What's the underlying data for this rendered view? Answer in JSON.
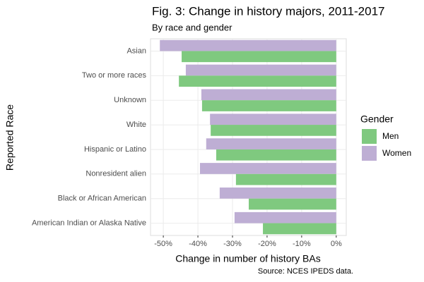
{
  "chart_data": {
    "type": "bar",
    "orientation": "horizontal",
    "title": "Fig. 3: Change in history majors, 2011-2017",
    "subtitle": "By race and gender",
    "xlabel": "Change in number of history BAs",
    "ylabel": "Reported Race",
    "caption": "Source: NCES IPEDS data.",
    "legend_title": "Gender",
    "legend_position": "right",
    "categories": [
      "Asian",
      "Two or more races",
      "Unknown",
      "White",
      "Hispanic or Latino",
      "Nonresident alien",
      "Black or African American",
      "American Indian or Alaska Native"
    ],
    "series": [
      {
        "name": "Men",
        "color": "#7fc97f",
        "values": [
          -44.7,
          -45.5,
          -38.8,
          -36.3,
          -34.7,
          -29.0,
          -25.3,
          -21.2
        ]
      },
      {
        "name": "Women",
        "color": "#beaed4",
        "values": [
          -51.0,
          -43.5,
          -39.0,
          -36.5,
          -37.6,
          -39.4,
          -33.7,
          -29.4
        ]
      }
    ],
    "xlim": [
      -53.7,
      2.9
    ],
    "xticks": [
      {
        "value": -50,
        "label": "-50%"
      },
      {
        "value": -40,
        "label": "-40%"
      },
      {
        "value": -30,
        "label": "-30%"
      },
      {
        "value": -20,
        "label": "-20%"
      },
      {
        "value": -10,
        "label": "-10%"
      },
      {
        "value": 0,
        "label": "0%"
      }
    ],
    "grid": true
  }
}
